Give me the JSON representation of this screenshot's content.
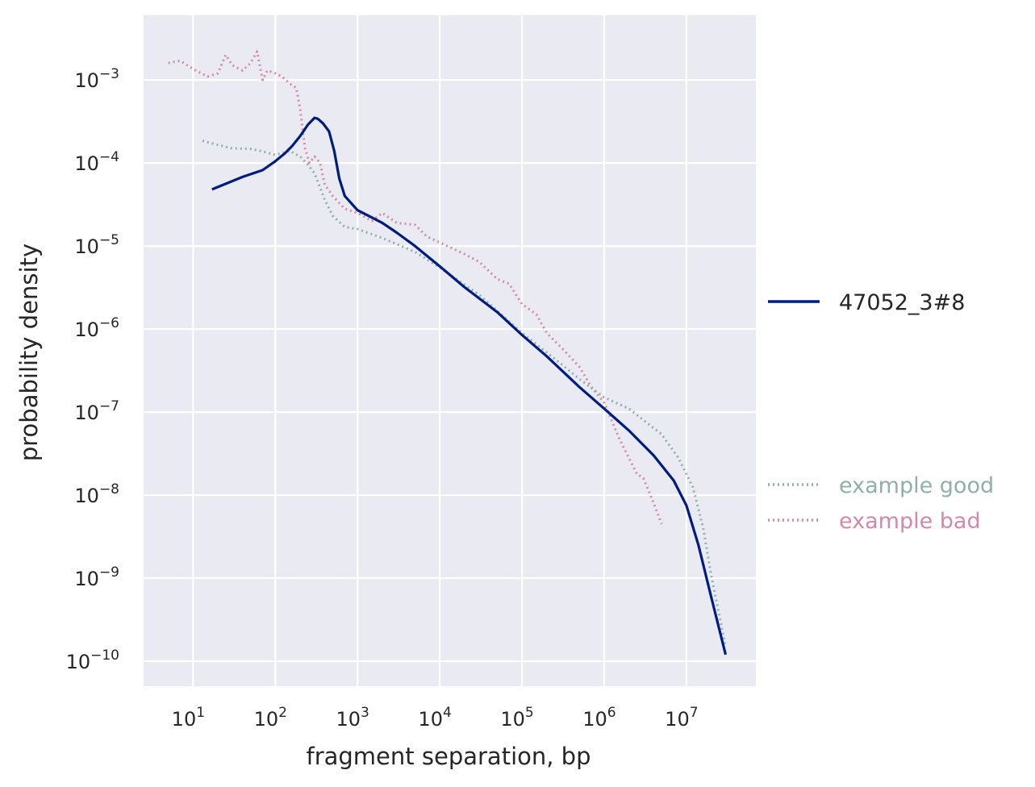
{
  "chart_data": {
    "type": "line",
    "xlabel": "fragment separation, bp",
    "ylabel": "probability density",
    "xscale": "log",
    "yscale": "log",
    "xlim": [
      2.5,
      70000000
    ],
    "ylim": [
      5e-11,
      0.006
    ],
    "grid": true,
    "legend_location": "right",
    "x_ticks": [
      {
        "base": "10",
        "exp": "1",
        "value": 10
      },
      {
        "base": "10",
        "exp": "2",
        "value": 100
      },
      {
        "base": "10",
        "exp": "3",
        "value": 1000
      },
      {
        "base": "10",
        "exp": "4",
        "value": 10000
      },
      {
        "base": "10",
        "exp": "5",
        "value": 100000
      },
      {
        "base": "10",
        "exp": "6",
        "value": 1000000
      },
      {
        "base": "10",
        "exp": "7",
        "value": 10000000
      }
    ],
    "y_ticks": [
      {
        "base": "10",
        "exp": "−3",
        "value": 0.001
      },
      {
        "base": "10",
        "exp": "−4",
        "value": 0.0001
      },
      {
        "base": "10",
        "exp": "−5",
        "value": 1e-05
      },
      {
        "base": "10",
        "exp": "−6",
        "value": 1e-06
      },
      {
        "base": "10",
        "exp": "−7",
        "value": 1e-07
      },
      {
        "base": "10",
        "exp": "−8",
        "value": 1e-08
      },
      {
        "base": "10",
        "exp": "−9",
        "value": 1e-09
      },
      {
        "base": "10",
        "exp": "−10",
        "value": 1e-10
      }
    ],
    "series": [
      {
        "name": "47052_3#8",
        "color": "#001c7f",
        "style": "solid",
        "x": [
          17,
          40,
          70,
          100,
          130,
          160,
          200,
          250,
          300,
          330,
          380,
          450,
          520,
          600,
          700,
          1000,
          1500,
          2000,
          3000,
          5000,
          10000,
          20000,
          50000,
          100000,
          200000,
          500000,
          1000000,
          2000000,
          4000000,
          7000000,
          10000000,
          14000000,
          20000000,
          30000000
        ],
        "y": [
          4.8e-05,
          6.8e-05,
          8.2e-05,
          0.000105,
          0.00013,
          0.00016,
          0.00021,
          0.00029,
          0.00035,
          0.00034,
          0.0003,
          0.00024,
          0.00014,
          6.5e-05,
          4e-05,
          2.7e-05,
          2.2e-05,
          1.9e-05,
          1.45e-05,
          1e-05,
          5.7e-06,
          3.2e-06,
          1.6e-06,
          8.5e-07,
          4.7e-07,
          2e-07,
          1.1e-07,
          6e-08,
          3e-08,
          1.5e-08,
          7.5e-09,
          2.5e-09,
          6e-10,
          1.2e-10
        ]
      },
      {
        "name": "example good",
        "color": "#8fb0aa",
        "style": "dotted",
        "x": [
          13,
          20,
          30,
          50,
          70,
          100,
          150,
          200,
          250,
          300,
          400,
          500,
          700,
          1000,
          2000,
          5000,
          10000,
          30000,
          100000,
          300000,
          500000,
          1000000,
          2000000,
          3000000,
          5000000,
          8000000,
          12000000,
          16000000,
          20000000,
          30000000
        ],
        "y": [
          0.000185,
          0.000165,
          0.00015,
          0.000148,
          0.000138,
          0.000125,
          0.00014,
          0.00012,
          9.5e-05,
          7.5e-05,
          3.6e-05,
          2.3e-05,
          1.7e-05,
          1.6e-05,
          1.25e-05,
          8.5e-06,
          5.5e-06,
          2.6e-06,
          9e-07,
          3.8e-07,
          2.5e-07,
          1.5e-07,
          1.1e-07,
          8e-08,
          5.4e-08,
          2.8e-08,
          1.25e-08,
          4e-09,
          1.1e-09,
          1.5e-10
        ]
      },
      {
        "name": "example bad",
        "color": "#d08ca5",
        "style": "dotted",
        "x": [
          5,
          7,
          10,
          15,
          20,
          25,
          30,
          40,
          50,
          60,
          70,
          80,
          100,
          120,
          150,
          180,
          200,
          230,
          260,
          300,
          350,
          400,
          500,
          700,
          1000,
          1500,
          2000,
          3000,
          5000,
          7000,
          10000,
          20000,
          30000,
          50000,
          70000,
          100000,
          150000,
          200000,
          300000,
          500000,
          700000,
          1000000,
          1300000,
          1500000,
          2000000,
          2500000,
          3000000,
          4000000,
          5000000
        ],
        "y": [
          0.0016,
          0.0017,
          0.00135,
          0.0011,
          0.0012,
          0.002,
          0.0015,
          0.0013,
          0.0016,
          0.0022,
          0.001,
          0.0013,
          0.0012,
          0.0011,
          0.0009,
          0.0008,
          0.00045,
          0.00015,
          0.0001,
          0.00012,
          0.0001,
          5.5e-05,
          4e-05,
          2.8e-05,
          2.5e-05,
          2e-05,
          2.5e-05,
          1.9e-05,
          1.8e-05,
          1.3e-05,
          1.1e-05,
          8e-06,
          6.5e-06,
          4e-06,
          3.5e-06,
          2e-06,
          1.5e-06,
          9e-07,
          6e-07,
          3.5e-07,
          2e-07,
          1.3e-07,
          7e-08,
          5e-08,
          2.8e-08,
          1.8e-08,
          1.6e-08,
          8e-09,
          4.5e-09
        ]
      }
    ]
  },
  "legend": {
    "main_label": "47052_3#8",
    "good_label": "example good",
    "bad_label": "example bad"
  }
}
